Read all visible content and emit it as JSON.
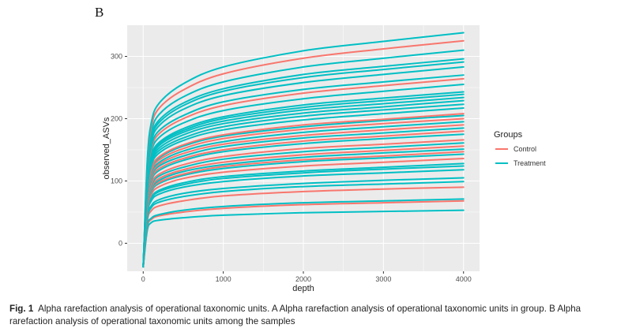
{
  "panel_label": "B",
  "caption": {
    "figure_label": "Fig. 1",
    "text": "Alpha rarefaction analysis of operational taxonomic units. A Alpha rarefaction analysis of operational taxonomic units in group. B Alpha rarefaction analysis of operational taxonomic units among the samples"
  },
  "chart_data": {
    "type": "line",
    "title": "",
    "xlabel": "depth",
    "ylabel": "observed_ASVs",
    "xlim": [
      -200,
      4200
    ],
    "ylim": [
      -45,
      350
    ],
    "xticks": [
      0,
      1000,
      2000,
      3000,
      4000
    ],
    "yticks": [
      0,
      100,
      200,
      300
    ],
    "grid": true,
    "background": "#ebebeb",
    "legend": {
      "title": "Groups",
      "position": "right",
      "entries": [
        {
          "label": "Control",
          "color": "#f8766d"
        },
        {
          "label": "Treatment",
          "color": "#00bfc4"
        }
      ]
    },
    "x": [
      0,
      50,
      100,
      200,
      500,
      1000,
      2000,
      3000,
      4000
    ],
    "series": [
      {
        "group": "Treatment",
        "values": [
          -38,
          20,
          33,
          37,
          41,
          45,
          49,
          51,
          53
        ]
      },
      {
        "group": "Control",
        "values": [
          -38,
          25,
          38,
          44,
          50,
          56,
          62,
          65,
          68
        ]
      },
      {
        "group": "Treatment",
        "values": [
          -38,
          27,
          40,
          46,
          53,
          59,
          65,
          68,
          71
        ]
      },
      {
        "group": "Control",
        "values": [
          -38,
          35,
          52,
          60,
          68,
          76,
          83,
          87,
          90
        ]
      },
      {
        "group": "Treatment",
        "values": [
          -38,
          38,
          57,
          66,
          75,
          83,
          91,
          95,
          99
        ]
      },
      {
        "group": "Treatment",
        "values": [
          -38,
          40,
          60,
          70,
          80,
          88,
          96,
          101,
          105
        ]
      },
      {
        "group": "Treatment",
        "values": [
          -38,
          45,
          68,
          79,
          90,
          99,
          108,
          113,
          118
        ]
      },
      {
        "group": "Treatment",
        "values": [
          -38,
          47,
          71,
          83,
          94,
          104,
          113,
          119,
          124
        ]
      },
      {
        "group": "Treatment",
        "values": [
          -38,
          49,
          73,
          85,
          97,
          107,
          116,
          122,
          128
        ]
      },
      {
        "group": "Control",
        "values": [
          -38,
          52,
          78,
          91,
          104,
          114,
          124,
          130,
          136
        ]
      },
      {
        "group": "Treatment",
        "values": [
          -38,
          55,
          82,
          96,
          109,
          120,
          131,
          137,
          143
        ]
      },
      {
        "group": "Control",
        "values": [
          -38,
          56,
          84,
          98,
          111,
          123,
          134,
          140,
          147
        ]
      },
      {
        "group": "Treatment",
        "values": [
          -38,
          58,
          86,
          101,
          115,
          126,
          138,
          145,
          151
        ]
      },
      {
        "group": "Control",
        "values": [
          -38,
          60,
          89,
          104,
          118,
          130,
          142,
          149,
          156
        ]
      },
      {
        "group": "Treatment",
        "values": [
          -38,
          62,
          92,
          108,
          122,
          135,
          147,
          154,
          161
        ]
      },
      {
        "group": "Control",
        "values": [
          -38,
          64,
          95,
          111,
          126,
          139,
          152,
          159,
          166
        ]
      },
      {
        "group": "Treatment",
        "values": [
          -38,
          67,
          100,
          117,
          133,
          147,
          160,
          168,
          175
        ]
      },
      {
        "group": "Control",
        "values": [
          -38,
          69,
          103,
          120,
          136,
          150,
          164,
          172,
          180
        ]
      },
      {
        "group": "Treatment",
        "values": [
          -38,
          71,
          106,
          124,
          140,
          155,
          169,
          177,
          185
        ]
      },
      {
        "group": "Control",
        "values": [
          -38,
          73,
          109,
          127,
          144,
          159,
          173,
          182,
          190
        ]
      },
      {
        "group": "Treatment",
        "values": [
          -38,
          75,
          112,
          130,
          148,
          163,
          178,
          187,
          195
        ]
      },
      {
        "group": "Control",
        "values": [
          -38,
          77,
          115,
          134,
          152,
          168,
          183,
          192,
          200
        ]
      },
      {
        "group": "Treatment",
        "values": [
          -38,
          79,
          118,
          137,
          156,
          172,
          187,
          197,
          205
        ]
      },
      {
        "group": "Control",
        "values": [
          -38,
          80,
          119,
          139,
          158,
          174,
          190,
          199,
          208
        ]
      },
      {
        "group": "Treatment",
        "values": [
          -38,
          83,
          124,
          145,
          165,
          182,
          198,
          208,
          217
        ]
      },
      {
        "group": "Treatment",
        "values": [
          -38,
          86,
          128,
          149,
          169,
          187,
          204,
          214,
          223
        ]
      },
      {
        "group": "Treatment",
        "values": [
          -38,
          88,
          131,
          153,
          174,
          192,
          209,
          219,
          229
        ]
      },
      {
        "group": "Treatment",
        "values": [
          -38,
          90,
          134,
          157,
          178,
          196,
          214,
          224,
          234
        ]
      },
      {
        "group": "Treatment",
        "values": [
          -38,
          92,
          137,
          160,
          181,
          200,
          218,
          229,
          239
        ]
      },
      {
        "group": "Treatment",
        "values": [
          -38,
          94,
          139,
          162,
          184,
          203,
          222,
          233,
          243
        ]
      },
      {
        "group": "Treatment",
        "values": [
          -38,
          98,
          146,
          170,
          193,
          213,
          232,
          244,
          255
        ]
      },
      {
        "group": "Control",
        "values": [
          -38,
          102,
          151,
          176,
          200,
          221,
          241,
          253,
          264
        ]
      },
      {
        "group": "Treatment",
        "values": [
          -38,
          104,
          155,
          181,
          205,
          227,
          247,
          259,
          270
        ]
      },
      {
        "group": "Treatment",
        "values": [
          -38,
          109,
          162,
          189,
          215,
          237,
          258,
          271,
          283
        ]
      },
      {
        "group": "Treatment",
        "values": [
          -38,
          112,
          167,
          194,
          221,
          244,
          266,
          279,
          291
        ]
      },
      {
        "group": "Treatment",
        "values": [
          -38,
          114,
          170,
          198,
          225,
          248,
          271,
          284,
          296
        ]
      },
      {
        "group": "Treatment",
        "values": [
          -38,
          119,
          177,
          207,
          235,
          259,
          283,
          297,
          310
        ]
      },
      {
        "group": "Control",
        "values": [
          -38,
          125,
          186,
          217,
          246,
          272,
          297,
          312,
          325
        ]
      },
      {
        "group": "Treatment",
        "values": [
          -38,
          130,
          193,
          225,
          256,
          283,
          309,
          324,
          338
        ]
      }
    ]
  }
}
